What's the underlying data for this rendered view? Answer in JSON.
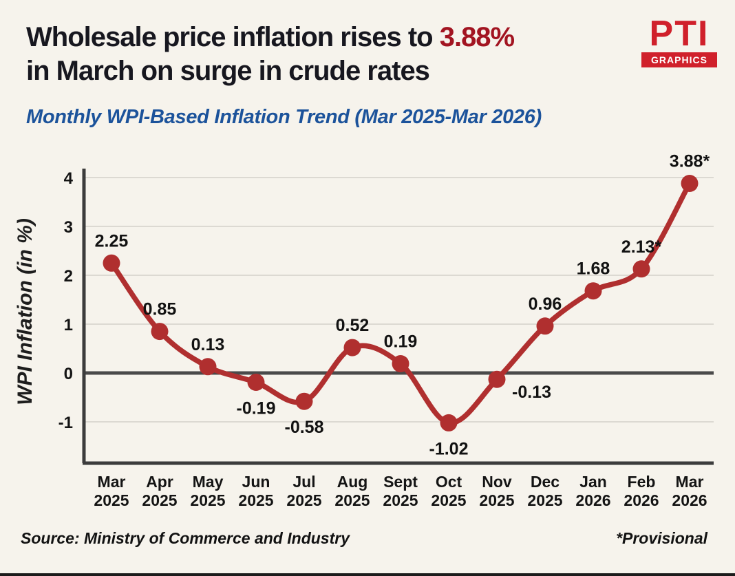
{
  "header": {
    "title": {
      "prefix": "Wholesale price inflation rises to ",
      "highlight": "3.88%",
      "line2": "in March on surge in crude rates"
    },
    "subtitle": "Monthly WPI-Based Inflation Trend (Mar 2025-Mar 2026)",
    "logo": {
      "name": "PTI",
      "sub": "GRAPHICS"
    }
  },
  "chart_data": {
    "type": "line",
    "title": "Monthly WPI-Based Inflation Trend (Mar 2025-Mar 2026)",
    "ylabel": "WPI Inflation (in %)",
    "xlabel": "",
    "ylim": [
      -2,
      4.3
    ],
    "yticks": [
      4,
      3,
      2,
      1,
      0,
      -1
    ],
    "grid": true,
    "zero_line": true,
    "legend": "none",
    "categories": [
      [
        "Mar",
        "2025"
      ],
      [
        "Apr",
        "2025"
      ],
      [
        "May",
        "2025"
      ],
      [
        "Jun",
        "2025"
      ],
      [
        "Jul",
        "2025"
      ],
      [
        "Aug",
        "2025"
      ],
      [
        "Sept",
        "2025"
      ],
      [
        "Oct",
        "2025"
      ],
      [
        "Nov",
        "2025"
      ],
      [
        "Dec",
        "2025"
      ],
      [
        "Jan",
        "2026"
      ],
      [
        "Feb",
        "2026"
      ],
      [
        "Mar",
        "2026"
      ]
    ],
    "series": [
      {
        "name": "WPI Inflation (in %)",
        "values": [
          2.25,
          0.85,
          0.13,
          -0.19,
          -0.58,
          0.52,
          0.19,
          -1.02,
          -0.13,
          0.96,
          1.68,
          2.13,
          3.88
        ]
      }
    ],
    "point_labels": [
      "2.25",
      "0.85",
      "0.13",
      "-0.19",
      "-0.58",
      "0.52",
      "0.19",
      "-1.02",
      "-0.13",
      "0.96",
      "1.68",
      "2.13*",
      "3.88*"
    ],
    "label_side": [
      "above",
      "above",
      "above",
      "below",
      "below",
      "above",
      "above",
      "below",
      "right",
      "above",
      "above",
      "above",
      "above"
    ]
  },
  "footer": {
    "source": "Source: Ministry of Commerce and Industry",
    "note": "*Provisional"
  },
  "colors": {
    "bg": "#f6f3ec",
    "title": "#17171f",
    "accent": "#a21421",
    "subtitle": "#1c539b",
    "line": "#b02f2f",
    "axis": "#3c3c3c",
    "grid": "#dcd9d2",
    "text": "#141414",
    "logo-red": "#d0202b"
  }
}
